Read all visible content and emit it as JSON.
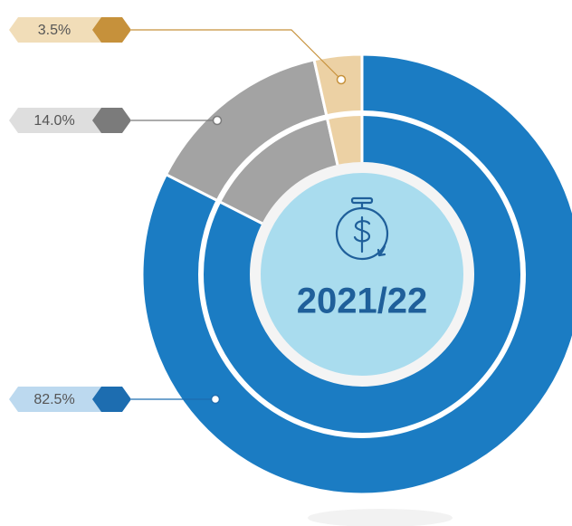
{
  "chart_data": {
    "type": "pie",
    "donut": true,
    "title": "2021/22",
    "categories": [
      null,
      null,
      null
    ],
    "values": [
      82.5,
      14.0,
      3.5
    ],
    "value_labels": [
      "82.5%",
      "14.0%",
      "3.5%"
    ],
    "colors": [
      "#1b7cc3",
      "#a3a3a3",
      "#ecd1a4"
    ]
  }
}
